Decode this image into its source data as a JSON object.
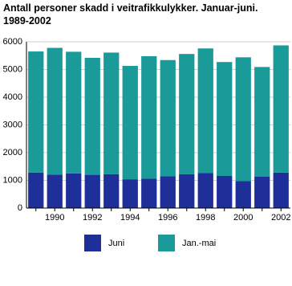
{
  "chart_data": {
    "type": "stacked-bar",
    "title": "Antall personer skadd i veitrafikkulykker. Januar-juni. 1989-2002",
    "categories": [
      null,
      "1990",
      null,
      "1992",
      null,
      "1994",
      null,
      "1996",
      null,
      "1998",
      null,
      "2000",
      null,
      "2002"
    ],
    "series": [
      {
        "name": "Juni",
        "color": "#1f2f9a",
        "values": [
          1280,
          1210,
          1250,
          1200,
          1220,
          1040,
          1060,
          1150,
          1220,
          1260,
          1160,
          970,
          1130,
          1280
        ]
      },
      {
        "name": "Jan.-mai",
        "color": "#1a9a98",
        "values": [
          4370,
          4570,
          4390,
          4220,
          4390,
          4090,
          4420,
          4190,
          4340,
          4500,
          4110,
          4470,
          3960,
          4590
        ]
      }
    ],
    "ylim": [
      0,
      6000
    ],
    "yticks": [
      0,
      1000,
      2000,
      3000,
      4000,
      5000,
      6000
    ],
    "grid": true
  }
}
